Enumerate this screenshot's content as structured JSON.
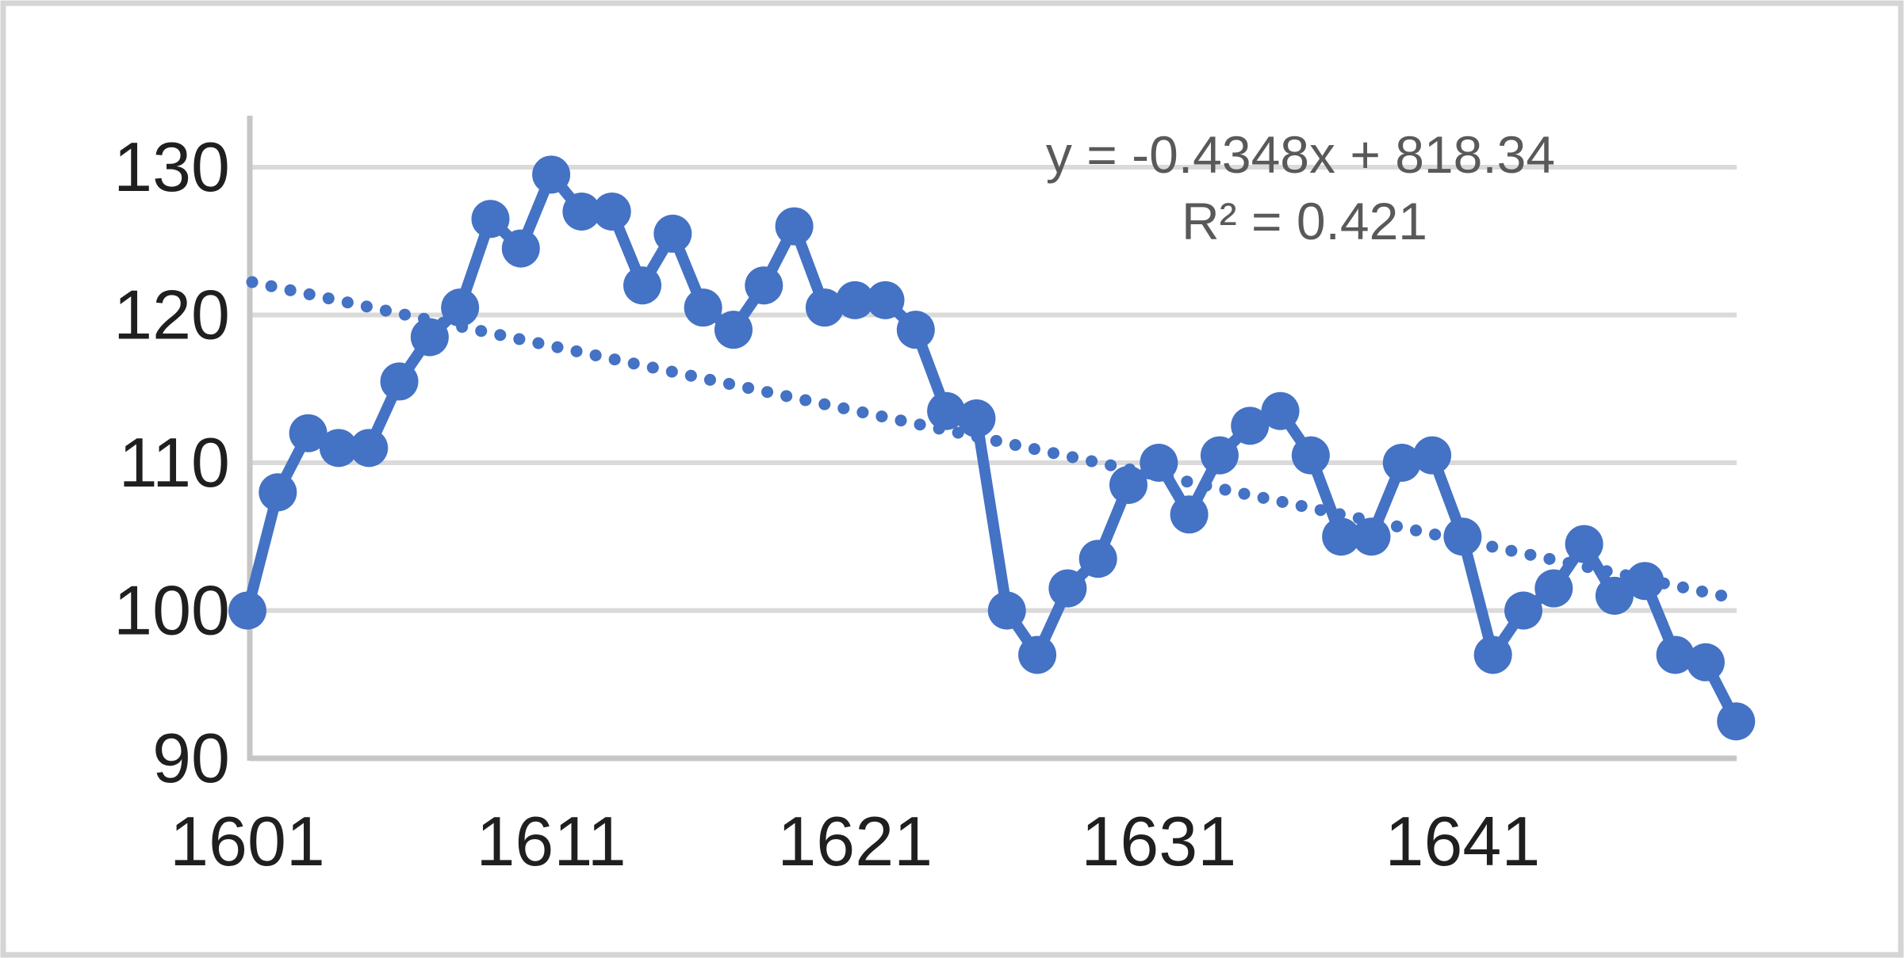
{
  "chart_data": {
    "type": "line",
    "title": "",
    "xlabel": "",
    "ylabel": "",
    "x": [
      1601,
      1602,
      1603,
      1604,
      1605,
      1606,
      1607,
      1608,
      1609,
      1610,
      1611,
      1612,
      1613,
      1614,
      1615,
      1616,
      1617,
      1618,
      1619,
      1620,
      1621,
      1622,
      1623,
      1624,
      1625,
      1626,
      1627,
      1628,
      1629,
      1630,
      1631,
      1632,
      1633,
      1634,
      1635,
      1636,
      1637,
      1638,
      1639,
      1640,
      1641,
      1642,
      1643,
      1644,
      1645,
      1646,
      1647,
      1648,
      1649,
      1650
    ],
    "values": [
      100,
      108,
      112,
      111,
      111,
      115.5,
      118.5,
      120.5,
      126.5,
      124.5,
      129.5,
      127,
      127,
      122,
      125.5,
      120.5,
      119,
      122,
      126,
      120.5,
      121,
      121,
      119,
      113.5,
      113,
      100,
      97,
      101.5,
      103.5,
      108.5,
      110,
      106.5,
      110.5,
      112.5,
      113.5,
      110.5,
      105,
      105,
      110,
      110.5,
      105,
      97,
      100,
      101.5,
      104.5,
      101,
      102,
      97,
      96.5,
      92.5
    ],
    "xticks": [
      1601,
      1611,
      1621,
      1631,
      1641
    ],
    "yticks": [
      90,
      100,
      110,
      120,
      130
    ],
    "xlim": [
      1601,
      1650.3
    ],
    "ylim": [
      90,
      133.5
    ],
    "grid": true,
    "legend": false,
    "marker": "circle",
    "line_style": "solid-with-markers",
    "trendline": {
      "type": "linear",
      "style": "dotted",
      "slope": -0.4348,
      "intercept": 818.34,
      "equation": "y = -0.4348x + 818.34",
      "r_squared": "R² = 0.421",
      "r_squared_value": 0.421
    },
    "colors": {
      "series": "#4472C4",
      "trendline": "#4472C4",
      "gridline": "#DADADA",
      "axis_line": "#C6C6C6",
      "tick_label": "#1F1F1F",
      "annotation": "#595959",
      "background": "#FFFFFF",
      "border": "#D5D5D5"
    }
  }
}
